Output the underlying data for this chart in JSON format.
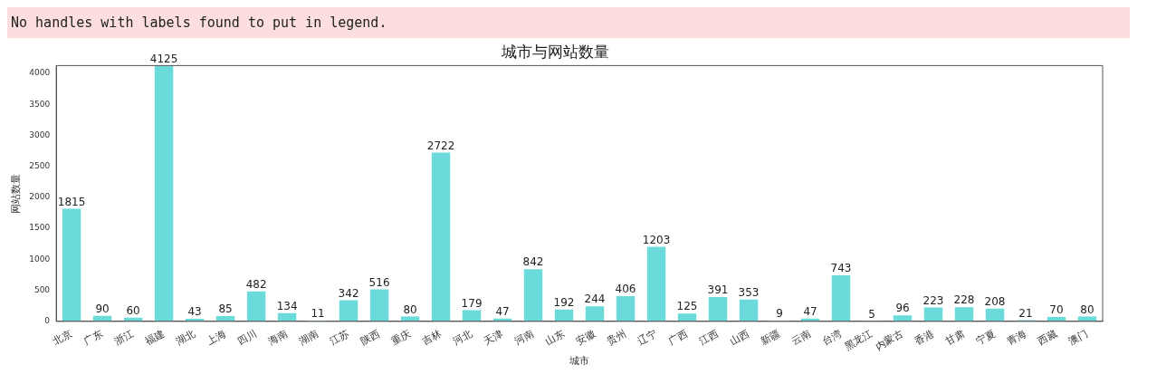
{
  "chart_data": {
    "type": "bar",
    "title": "城市与网站数量",
    "xlabel": "城市",
    "ylabel": "网站数量",
    "annotations": [
      "No handles with labels found to put in legend."
    ],
    "categories": [
      "北京",
      "广东",
      "浙江",
      "福建",
      "湖北",
      "上海",
      "四川",
      "海南",
      "湖南",
      "江苏",
      "陕西",
      "重庆",
      "吉林",
      "河北",
      "天津",
      "河南",
      "山东",
      "安徽",
      "贵州",
      "辽宁",
      "广西",
      "江西",
      "山西",
      "新疆",
      "云南",
      "台湾",
      "黑龙江",
      "内蒙古",
      "香港",
      "甘肃",
      "宁夏",
      "青海",
      "西藏",
      "澳门"
    ],
    "values": [
      1815,
      90,
      60,
      4125,
      43,
      85,
      482,
      134,
      11,
      342,
      516,
      80,
      2722,
      179,
      47,
      842,
      192,
      244,
      406,
      1203,
      125,
      391,
      353,
      9,
      47,
      743,
      5,
      96,
      223,
      228,
      208,
      21,
      70,
      80
    ],
    "color": "#6bdada",
    "ylim": [
      0,
      4125
    ],
    "yticks": [
      0,
      500,
      1000,
      1500,
      2000,
      2500,
      3000,
      3500,
      4000
    ],
    "data_labels": true,
    "grid": false,
    "legend": false
  }
}
